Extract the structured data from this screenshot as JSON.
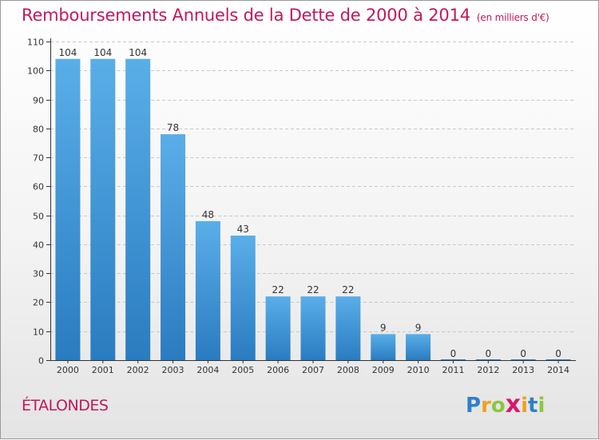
{
  "header": {
    "title": "Remboursements Annuels de la Dette de 2000 à 2014",
    "unit": "(en milliers d'€)"
  },
  "footer": {
    "commune": "ÉTALONDES",
    "logo": {
      "letters": [
        "P",
        "r",
        "o",
        "x",
        "i",
        "t",
        "i"
      ],
      "colors": [
        "#2f80c8",
        "#f0a020",
        "#8cc63f",
        "#d6186e",
        "#f0a020",
        "#2f80c8",
        "#8cc63f"
      ]
    }
  },
  "colors": {
    "bar_light": "#5aaee8",
    "bar_dark": "#2a7cc0",
    "title": "#c2185b",
    "axis": "#333333"
  },
  "chart_data": {
    "type": "bar",
    "title": "Remboursements Annuels de la Dette de 2000 à 2014",
    "xlabel": "",
    "ylabel": "",
    "categories": [
      "2000",
      "2001",
      "2002",
      "2003",
      "2004",
      "2005",
      "2006",
      "2007",
      "2008",
      "2009",
      "2010",
      "2011",
      "2012",
      "2013",
      "2014"
    ],
    "values": [
      104,
      104,
      104,
      78,
      48,
      43,
      22,
      22,
      22,
      9,
      9,
      0,
      0,
      0,
      0
    ],
    "ylim": [
      0,
      110
    ],
    "yticks": [
      0,
      10,
      20,
      30,
      40,
      50,
      60,
      70,
      80,
      90,
      100,
      110
    ],
    "grid": true,
    "data_labels": true
  }
}
